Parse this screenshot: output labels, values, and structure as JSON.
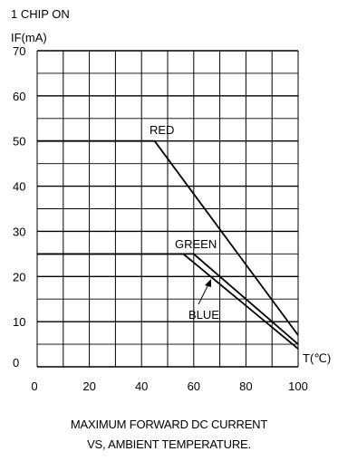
{
  "chart_data": {
    "type": "line",
    "header": "1 CHIP ON",
    "ylabel": "IF(mA)",
    "xlabel": "T(℃)",
    "xlim": [
      0,
      100
    ],
    "ylim": [
      0,
      70
    ],
    "x_ticks": [
      0,
      20,
      40,
      60,
      80,
      100
    ],
    "y_ticks": [
      0,
      10,
      20,
      30,
      40,
      50,
      60,
      70
    ],
    "grid": true,
    "series": [
      {
        "name": "RED",
        "x": [
          0,
          45,
          100
        ],
        "y": [
          50,
          50,
          7
        ]
      },
      {
        "name": "GREEN",
        "x": [
          0,
          60,
          100
        ],
        "y": [
          25,
          25,
          5
        ]
      },
      {
        "name": "BLUE",
        "x": [
          0,
          56,
          100
        ],
        "y": [
          25,
          25,
          4
        ]
      }
    ],
    "caption_line1": "MAXIMUM FORWARD DC CURRENT",
    "caption_line2": "VS, AMBIENT TEMPERATURE."
  }
}
